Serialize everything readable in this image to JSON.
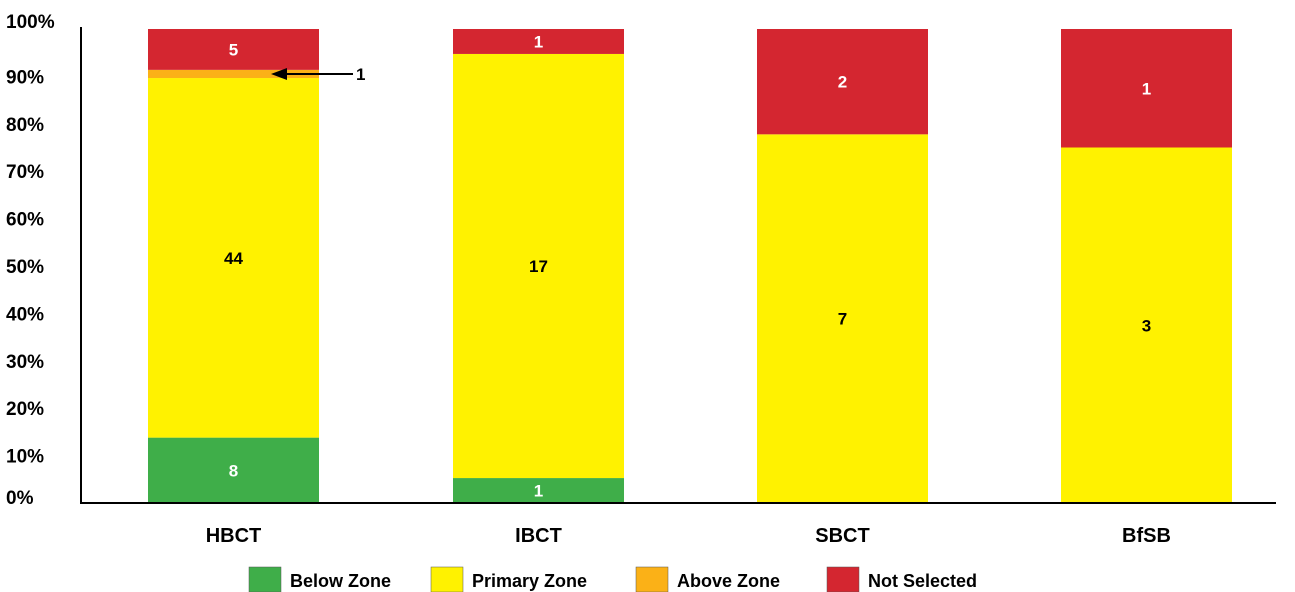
{
  "chart_data": {
    "type": "bar",
    "stacked": true,
    "normalized_percent": true,
    "categories": [
      "HBCT",
      "IBCT",
      "SBCT",
      "BfSB"
    ],
    "series": [
      {
        "name": "Below Zone",
        "color": "#3fae49",
        "label_color": "#ffffff",
        "values": [
          8,
          1,
          0,
          0
        ]
      },
      {
        "name": "Primary Zone",
        "color": "#fff200",
        "label_color": "#000000",
        "values": [
          44,
          17,
          7,
          3
        ]
      },
      {
        "name": "Above Zone",
        "color": "#fbb117",
        "label_color": "#000000",
        "values": [
          1,
          0,
          0,
          0
        ]
      },
      {
        "name": "Not Selected",
        "color": "#d42630",
        "label_color": "#ffffff",
        "values": [
          5,
          1,
          2,
          1
        ]
      }
    ],
    "ylim": [
      0,
      100
    ],
    "yticks": [
      "0%",
      "10%",
      "20%",
      "30%",
      "40%",
      "50%",
      "60%",
      "70%",
      "80%",
      "90%",
      "100%"
    ],
    "grid": false,
    "legend_position": "bottom",
    "annotation": {
      "category": "HBCT",
      "series": "Above Zone",
      "text": "1",
      "arrow": true
    }
  }
}
